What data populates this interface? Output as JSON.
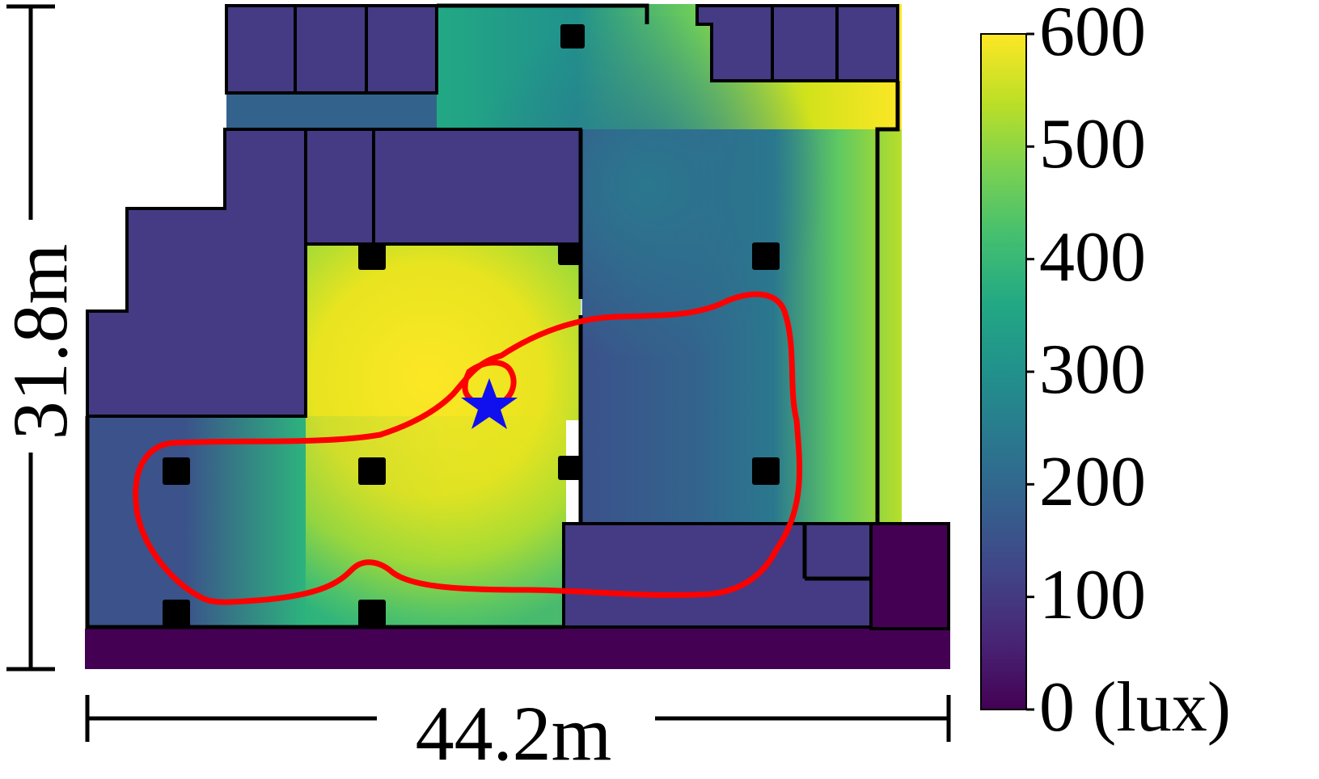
{
  "chart_data": {
    "type": "heatmap",
    "description_axes": {
      "width_label": "44.2m",
      "height_label": "31.8m"
    },
    "colorbar": {
      "colormap": "viridis",
      "min": 0,
      "max": 600,
      "ticks": [
        0,
        100,
        200,
        300,
        400,
        500,
        600
      ],
      "tick_labels": [
        "0 (lux)",
        "100",
        "200",
        "300",
        "400",
        "500",
        "600"
      ]
    },
    "colors": {
      "dark_room": "#443b84",
      "outside_strip": "#440154",
      "walls": "#000000",
      "path": "#ff0000",
      "star": "#1010ee"
    }
  }
}
